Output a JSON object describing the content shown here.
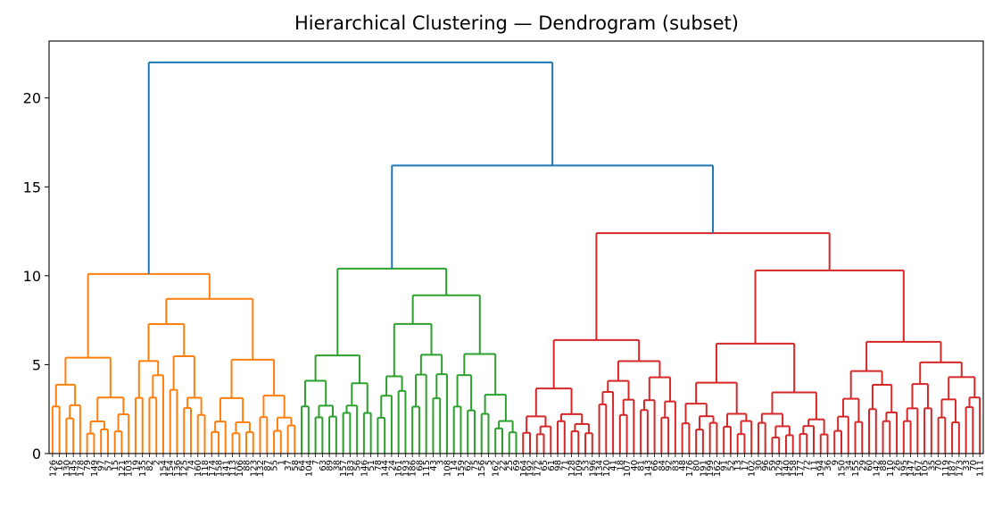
{
  "chart_data": {
    "type": "dendrogram",
    "title": "Hierarchical Clustering — Dendrogram (subset)",
    "xlabel": "",
    "ylabel": "",
    "ylim": [
      0,
      23.2
    ],
    "yticks": [
      0,
      5,
      10,
      15,
      20
    ],
    "grid": false,
    "colors": {
      "orange": "#ff7f0e",
      "green": "#2ca02c",
      "red": "#d62728",
      "blue": "#1f77b4"
    },
    "clusters": [
      {
        "color": "orange",
        "leaves": [
          "126",
          "16",
          "130",
          "145",
          "178",
          "79",
          "149",
          "97",
          "57",
          "15",
          "121",
          "103",
          "19",
          "135",
          "82",
          "2",
          "154",
          "154",
          "136",
          "125",
          "74",
          "160",
          "118",
          "174",
          "158",
          "141",
          "113",
          "106",
          "88",
          "123",
          "132",
          "87",
          "55",
          "1",
          "37",
          "58"
        ]
      },
      {
        "color": "green",
        "leaves": [
          "64",
          "104",
          "7",
          "63",
          "89",
          "38",
          "157",
          "183",
          "56",
          "146",
          "51",
          "78",
          "144",
          "24",
          "161",
          "193",
          "186",
          "68",
          "115",
          "43",
          "3",
          "108",
          "14",
          "159",
          "62",
          "75",
          "156",
          "5",
          "162",
          "22",
          "25",
          "69"
        ]
      },
      {
        "color": "red",
        "leaves": [
          "164",
          "192",
          "172",
          "65",
          "61",
          "98",
          "71",
          "128",
          "109",
          "53",
          "196",
          "134",
          "120",
          "41",
          "18",
          "107",
          "40",
          "81",
          "143",
          "66",
          "84",
          "92",
          "83",
          "48",
          "176",
          "80",
          "191",
          "199",
          "162",
          "91",
          "52",
          "13",
          "17",
          "102",
          "30",
          "96",
          "59",
          "129",
          "140",
          "158",
          "177",
          "72",
          "11",
          "194",
          "36",
          "9",
          "150",
          "34",
          "155",
          "29",
          "60",
          "142",
          "88",
          "110",
          "26",
          "195",
          "147",
          "167",
          "105",
          "35",
          "70",
          "119",
          "187",
          "173",
          "33",
          "70",
          "111"
        ]
      }
    ],
    "merges": [
      {
        "color": "orange",
        "from": 0,
        "to": 35,
        "height": 10.1
      },
      {
        "color": "green",
        "from": 36,
        "to": 67,
        "height": 10.4
      },
      {
        "color": "red",
        "from": 68,
        "to": 134,
        "height": 12.4
      },
      {
        "color": "blue",
        "from": "green",
        "to": "red",
        "height": 16.2
      },
      {
        "color": "blue",
        "from": "orange",
        "to": "green+red",
        "height": 22.0
      }
    ]
  }
}
